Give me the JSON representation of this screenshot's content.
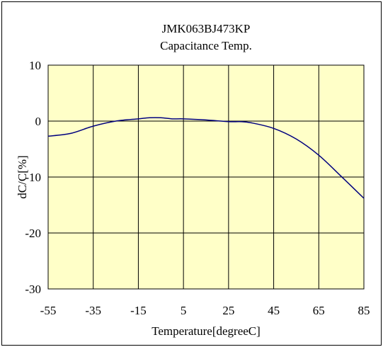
{
  "chart_data": {
    "type": "line",
    "title": "JMK063BJ473KP",
    "subtitle": "Capacitance Temp.",
    "xlabel": "Temperature[degreeC]",
    "ylabel": "dC/C[%]",
    "xlim": [
      -55,
      85
    ],
    "ylim": [
      -30,
      10
    ],
    "xticks": [
      "-55",
      "-35",
      "-15",
      "5",
      "25",
      "45",
      "65",
      "85"
    ],
    "yticks": [
      "10",
      "0",
      "-10",
      "-20",
      "-30"
    ],
    "grid": true,
    "plot_background": "#ffffc8",
    "series": [
      {
        "color": "#00007f",
        "x": [
          -55,
          -45,
          -35,
          -25,
          -15,
          -10,
          -5,
          0,
          5,
          15,
          25,
          30,
          35,
          45,
          55,
          65,
          75,
          85
        ],
        "y": [
          -2.7,
          -2.2,
          -0.9,
          0.0,
          0.4,
          0.6,
          0.6,
          0.4,
          0.4,
          0.2,
          -0.1,
          -0.1,
          -0.3,
          -1.3,
          -3.2,
          -6.1,
          -9.9,
          -13.8
        ]
      }
    ]
  }
}
